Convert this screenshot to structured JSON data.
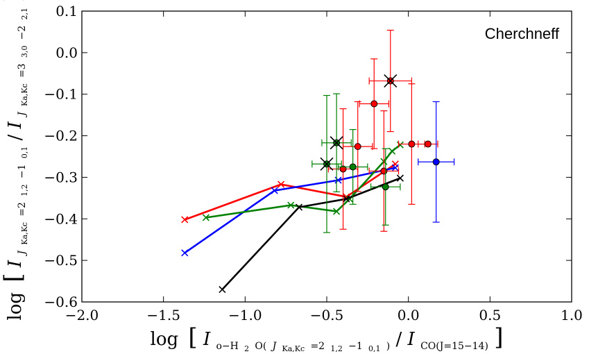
{
  "chart_data": {
    "type": "scatter",
    "annotation": "Cherchneff",
    "xlabel": {
      "prefix": "log",
      "num_main": "I",
      "num_sub": "o−H",
      "num_sub2": "2",
      "num_sub3": "O(",
      "num_sub_J": "J",
      "num_sub_Ka": "Ka,Kc",
      "num_sub_tail": "=2",
      "num_sub_tail2": "1,2",
      "num_sub_tail3": "−1",
      "num_sub_tail4": "0,1",
      "num_sub_close": ")",
      "slash": "/",
      "den_main": "I",
      "den_sub": "CO(J=15−14)"
    },
    "ylabel": {
      "prefix": "log",
      "num_main": "I",
      "num_sub": "J",
      "num_sub2": "Ka,Kc",
      "num_sub3": "=2",
      "num_sub4": "1,2",
      "num_sub5": "−1",
      "num_sub6": "0,1",
      "slash": "/",
      "den_main": "I",
      "den_sub": "J",
      "den_sub2": "Ka,Kc",
      "den_sub3": "=3",
      "den_sub4": "3,0",
      "den_sub5": "−2",
      "den_sub6": "2,1"
    },
    "xlim": [
      -2.0,
      1.0
    ],
    "ylim": [
      -0.6,
      0.1
    ],
    "xticks": [
      -2.0,
      -1.5,
      -1.0,
      -0.5,
      0.0,
      0.5,
      1.0
    ],
    "xtick_labels": [
      "−2.0",
      "−1.5",
      "−1.0",
      "−0.5",
      "0.0",
      "0.5",
      "1.0"
    ],
    "yticks": [
      -0.6,
      -0.5,
      -0.4,
      -0.3,
      -0.2,
      -0.1,
      0.0,
      0.1
    ],
    "ytick_labels": [
      "−0.6",
      "−0.5",
      "−0.4",
      "−0.3",
      "−0.2",
      "−0.1",
      "0.0",
      "0.1"
    ],
    "model_lines": [
      {
        "name": "red",
        "color": "#ff0000",
        "x": [
          -1.37,
          -0.78,
          -0.38,
          -0.08
        ],
        "y": [
          -0.402,
          -0.317,
          -0.347,
          -0.268
        ]
      },
      {
        "name": "blue",
        "color": "#0000ff",
        "x": [
          -1.37,
          -0.82,
          -0.43,
          -0.08
        ],
        "y": [
          -0.482,
          -0.332,
          -0.307,
          -0.277
        ]
      },
      {
        "name": "green",
        "color": "#008000",
        "x": [
          -1.24,
          -0.72,
          -0.44,
          -0.36,
          -0.15,
          -0.1,
          -0.05
        ],
        "y": [
          -0.397,
          -0.367,
          -0.382,
          -0.352,
          -0.262,
          -0.237,
          -0.222
        ]
      },
      {
        "name": "black",
        "color": "#000000",
        "x": [
          -1.14,
          -0.67,
          -0.38,
          -0.05
        ],
        "y": [
          -0.57,
          -0.372,
          -0.352,
          -0.302
        ]
      }
    ],
    "observations": [
      {
        "color": "#ff0000",
        "x": -0.11,
        "y": -0.068,
        "xerr": 0.13,
        "yerr": 0.122,
        "cross": true
      },
      {
        "color": "#ff0000",
        "x": -0.21,
        "y": -0.123,
        "xerr": 0.09,
        "yerr": 0.108,
        "cross": false
      },
      {
        "color": "#ff0000",
        "x": -0.31,
        "y": -0.226,
        "xerr": 0.09,
        "yerr": 0.108,
        "cross": false
      },
      {
        "color": "#ff0000",
        "x": -0.4,
        "y": -0.28,
        "xerr": 0.09,
        "yerr": 0.145,
        "cross": false
      },
      {
        "color": "#ff0000",
        "x": -0.15,
        "y": -0.285,
        "xerr": 0.09,
        "yerr": 0.145,
        "cross": false
      },
      {
        "color": "#ff0000",
        "x": 0.02,
        "y": -0.22,
        "xerr": 0.08,
        "yerr": 0.145,
        "cross": false
      },
      {
        "color": "#ff0000",
        "x": 0.12,
        "y": -0.22,
        "xerr": 0.06,
        "yerr": 0.0,
        "cross": false
      },
      {
        "color": "#0000ff",
        "x": 0.17,
        "y": -0.263,
        "xerr": 0.11,
        "yerr": 0.145,
        "cross": false
      },
      {
        "color": "#008000",
        "x": -0.44,
        "y": -0.217,
        "xerr": 0.09,
        "yerr": 0.118,
        "cross": true
      },
      {
        "color": "#008000",
        "x": -0.5,
        "y": -0.268,
        "xerr": 0.09,
        "yerr": 0.165,
        "cross": true
      },
      {
        "color": "#008000",
        "x": -0.34,
        "y": -0.275,
        "xerr": 0.09,
        "yerr": 0.09,
        "cross": false
      },
      {
        "color": "#008000",
        "x": -0.14,
        "y": -0.323,
        "xerr": 0.09,
        "yerr": 0.092,
        "cross": false
      }
    ]
  }
}
